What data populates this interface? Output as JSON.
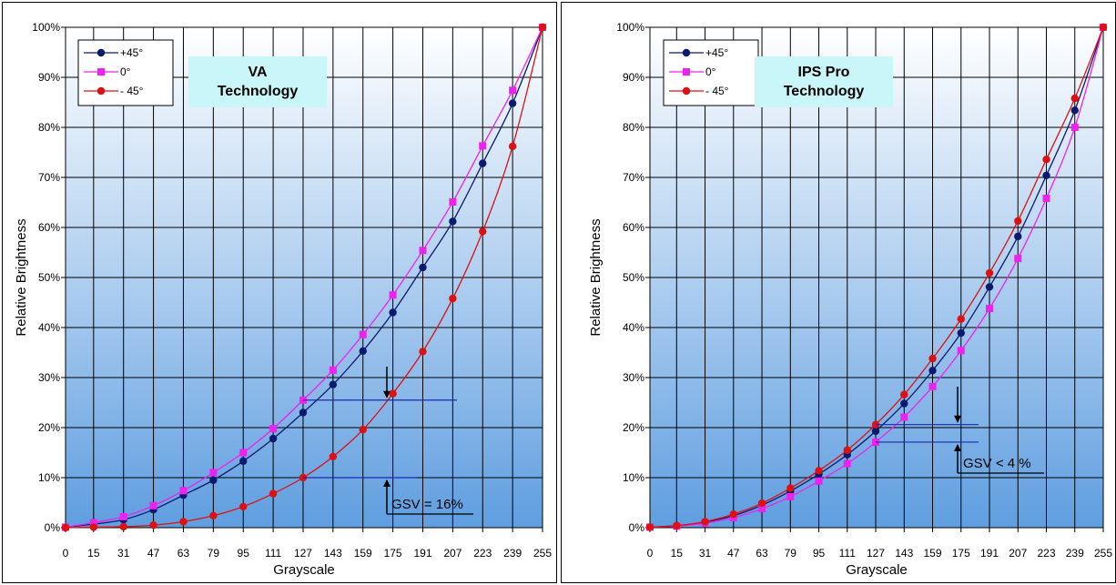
{
  "chart_data": [
    {
      "type": "line",
      "title_lines": [
        "VA",
        "Technology"
      ],
      "xlabel": "Grayscale",
      "ylabel": "Relative Brightness",
      "x": [
        0,
        15,
        31,
        47,
        63,
        79,
        95,
        111,
        127,
        143,
        159,
        175,
        191,
        207,
        223,
        239,
        255
      ],
      "y_ticks": [
        "0%",
        "10%",
        "20%",
        "30%",
        "40%",
        "50%",
        "60%",
        "70%",
        "80%",
        "90%",
        "100%"
      ],
      "ylim": [
        0,
        100
      ],
      "legend_position": "top-left",
      "series": [
        {
          "name": "+45°",
          "color": "#0a1a6e",
          "marker": "circle",
          "values": [
            0.1,
            0.7,
            1.6,
            3.6,
            6.5,
            9.5,
            13.3,
            17.8,
            23.0,
            28.6,
            35.3,
            43.0,
            52.0,
            61.2,
            72.8,
            84.8,
            100
          ]
        },
        {
          "name": "0°",
          "color": "#ee22ee",
          "marker": "square",
          "values": [
            0.1,
            1.0,
            2.2,
            4.4,
            7.4,
            11.0,
            15.0,
            19.8,
            25.5,
            31.5,
            38.6,
            46.5,
            55.4,
            65.1,
            76.3,
            87.4,
            100
          ]
        },
        {
          "name": "- 45°",
          "color": "#dd1111",
          "marker": "circle",
          "values": [
            0.0,
            0.1,
            0.2,
            0.5,
            1.2,
            2.4,
            4.2,
            6.8,
            10.0,
            14.2,
            19.6,
            26.8,
            35.2,
            45.8,
            59.2,
            76.2,
            100
          ]
        }
      ],
      "annotation": "GSV = 16%"
    },
    {
      "type": "line",
      "title_lines": [
        "IPS Pro",
        "Technology"
      ],
      "xlabel": "Grayscale",
      "ylabel": "Relative Brightness",
      "x": [
        0,
        15,
        31,
        47,
        63,
        79,
        95,
        111,
        127,
        143,
        159,
        175,
        191,
        207,
        223,
        239,
        255
      ],
      "y_ticks": [
        "0%",
        "10%",
        "20%",
        "30%",
        "40%",
        "50%",
        "60%",
        "70%",
        "80%",
        "90%",
        "100%"
      ],
      "ylim": [
        0,
        100
      ],
      "legend_position": "top-left",
      "series": [
        {
          "name": "+45°",
          "color": "#0a1a6e",
          "marker": "circle",
          "values": [
            0.1,
            0.4,
            1.1,
            2.4,
            4.5,
            7.3,
            10.7,
            14.6,
            19.3,
            24.8,
            31.4,
            38.9,
            48.1,
            58.2,
            70.4,
            83.4,
            100
          ]
        },
        {
          "name": "0°",
          "color": "#ee22ee",
          "marker": "square",
          "values": [
            0.1,
            0.3,
            0.9,
            2.0,
            3.8,
            6.2,
            9.3,
            12.8,
            17.1,
            22.1,
            28.2,
            35.4,
            43.8,
            53.8,
            65.8,
            80.0,
            100
          ]
        },
        {
          "name": "- 45°",
          "color": "#dd1111",
          "marker": "circle",
          "values": [
            0.1,
            0.4,
            1.2,
            2.7,
            4.9,
            7.9,
            11.4,
            15.5,
            20.6,
            26.6,
            33.8,
            41.7,
            50.9,
            61.3,
            73.6,
            85.8,
            100
          ]
        }
      ],
      "annotation": "GSV < 4 %"
    }
  ]
}
